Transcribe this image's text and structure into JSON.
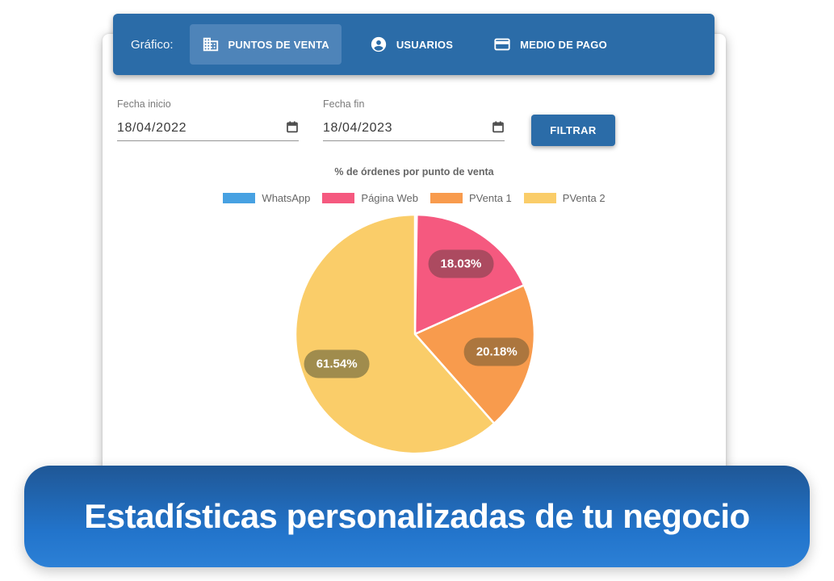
{
  "header": {
    "prefix_label": "Gráfico:",
    "tabs": [
      {
        "label": "PUNTOS DE VENTA",
        "icon": "building-icon",
        "selected": true
      },
      {
        "label": "USUARIOS",
        "icon": "user-icon",
        "selected": false
      },
      {
        "label": "MEDIO DE PAGO",
        "icon": "credit-card-icon",
        "selected": false
      }
    ]
  },
  "filters": {
    "start_date": {
      "label": "Fecha inicio",
      "value": "18/04/2022",
      "icon": "calendar-icon"
    },
    "end_date": {
      "label": "Fecha fin",
      "value": "18/04/2023",
      "icon": "calendar-icon"
    },
    "filter_button_label": "FILTRAR"
  },
  "chart_data": {
    "type": "pie",
    "title": "% de órdenes por punto de venta",
    "legend_position": "top",
    "start_angle_deg": 0,
    "direction": "clockwise",
    "series": [
      {
        "label": "WhatsApp",
        "value": 0.25,
        "color": "#47a1e2",
        "label_bg": null,
        "display": ""
      },
      {
        "label": "Página Web",
        "value": 18.03,
        "color": "#f5597f",
        "label_bg": "#ac4a60",
        "display": "18.03%"
      },
      {
        "label": "PVenta 1",
        "value": 20.18,
        "color": "#f89b4d",
        "label_bg": "#ac763e",
        "display": "20.18%"
      },
      {
        "label": "PVenta 2",
        "value": 61.54,
        "color": "#facd69",
        "label_bg": "#a08c4d",
        "display": "61.54%"
      }
    ]
  },
  "banner": {
    "text": "Estadísticas personalizadas de tu negocio"
  },
  "colors": {
    "header_bar": "#2b6ca8",
    "selected_tab": "#4e84b9",
    "banner_gradient_top": "#1f5796",
    "banner_gradient_bottom": "#2c80d6",
    "legend_text": "#666666",
    "underline": "#949494"
  }
}
